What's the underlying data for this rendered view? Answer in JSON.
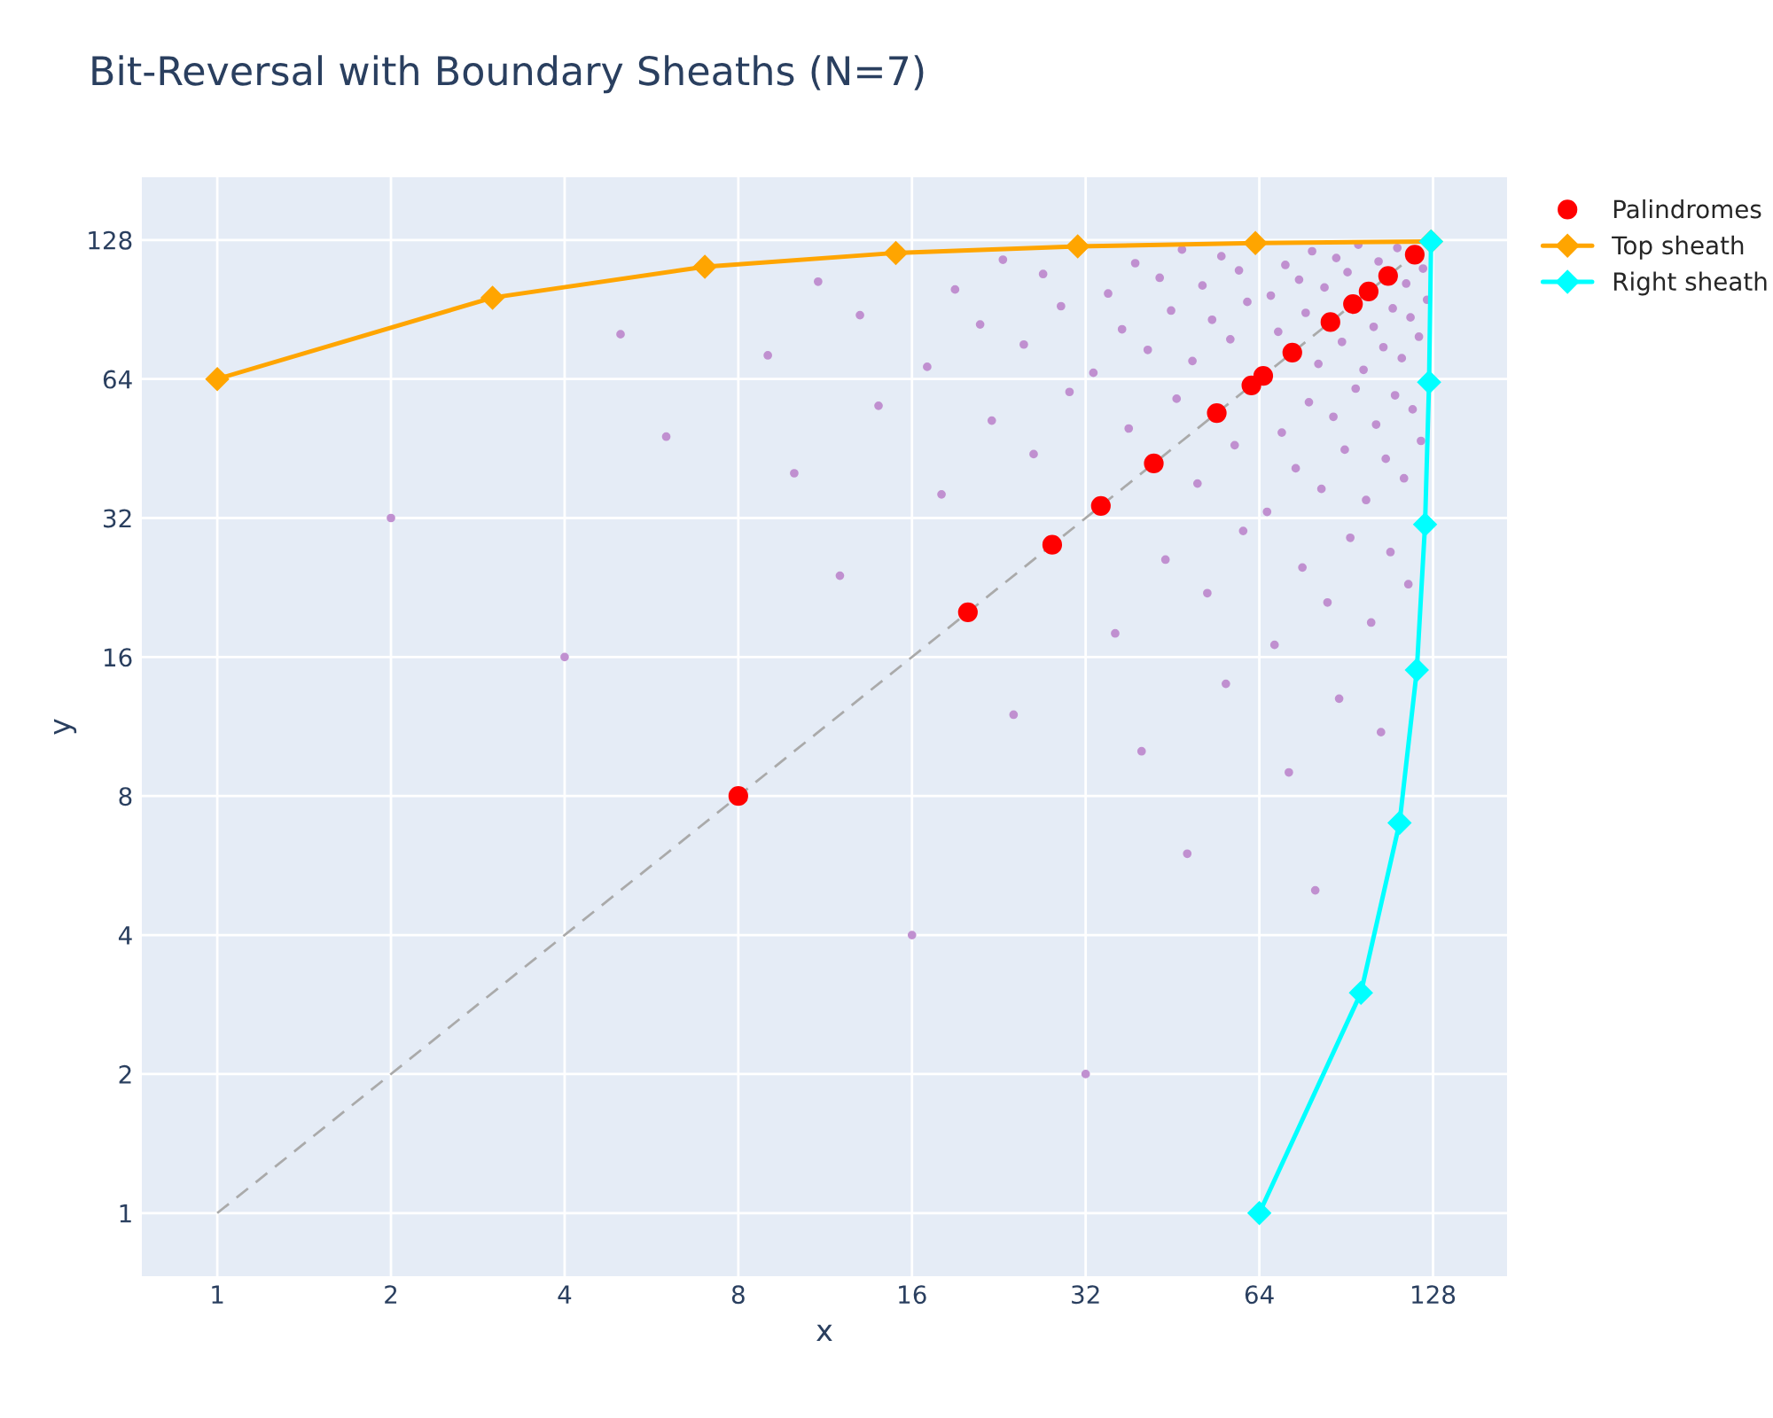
{
  "chart_data": {
    "type": "scatter",
    "title": "Bit-Reversal with Boundary Sheaths (N=7)",
    "xlabel": "x",
    "ylabel": "y",
    "log": "xy",
    "xlim": [
      0.74,
      172
    ],
    "ylim": [
      0.73,
      175
    ],
    "xticks": [
      1,
      2,
      4,
      8,
      16,
      32,
      64,
      128
    ],
    "yticks": [
      1,
      2,
      4,
      8,
      16,
      32,
      64,
      128
    ],
    "grid": true,
    "legend": "top right",
    "series": [
      {
        "type": "line",
        "color": "#aaaaaa",
        "line_style": "dashed",
        "marker": "none",
        "x": [
          1,
          128
        ],
        "values": [
          1,
          128
        ]
      },
      {
        "color": "#c090d0",
        "marker": "circle",
        "x": [
          2,
          4,
          5,
          6,
          9,
          10,
          11,
          12,
          13,
          14,
          16,
          17,
          18,
          19,
          21,
          22,
          23,
          24,
          25,
          26,
          27,
          29,
          30,
          32,
          33,
          35,
          36,
          37,
          38,
          39,
          40,
          41,
          43,
          44,
          45,
          46,
          47,
          48,
          49,
          50,
          51,
          52,
          53,
          55,
          56,
          57,
          58,
          59,
          60,
          61,
          66,
          67,
          68,
          69,
          70,
          71,
          72,
          74,
          75,
          76,
          77,
          78,
          79,
          80,
          81,
          82,
          83,
          84,
          86,
          87,
          88,
          89,
          90,
          91,
          92,
          94,
          95,
          97,
          98,
          100,
          101,
          102,
          103,
          104,
          105,
          106,
          108,
          109,
          110,
          111,
          113,
          114,
          115,
          116,
          117,
          118,
          121,
          122,
          123,
          125
        ],
        "values": [
          32,
          16,
          80,
          48,
          72,
          40,
          104,
          24,
          88,
          56,
          4,
          68,
          36,
          100,
          84,
          52,
          116,
          12,
          76,
          44,
          108,
          92,
          60,
          2,
          66,
          98,
          18,
          82,
          50,
          114,
          10,
          74,
          106,
          26,
          90,
          58,
          122,
          6,
          70,
          38,
          102,
          22,
          86,
          118,
          14,
          78,
          46,
          110,
          30,
          94,
          33,
          97,
          17,
          81,
          49,
          113,
          9,
          41,
          105,
          25,
          89,
          57,
          121,
          5,
          69,
          37,
          101,
          21,
          53,
          117,
          13,
          77,
          45,
          109,
          29,
          61,
          125,
          67,
          35,
          19,
          83,
          51,
          115,
          11,
          75,
          43,
          27,
          91,
          59,
          123,
          71,
          39,
          103,
          23,
          87,
          55,
          79,
          47,
          111,
          95
        ]
      },
      {
        "name": "Palindromes",
        "color": "#ff0000",
        "marker": "circle",
        "x": [
          8,
          20,
          28,
          34,
          42,
          54,
          62,
          65,
          73,
          85,
          93,
          99,
          107,
          119
        ],
        "values": [
          8,
          20,
          28,
          34,
          42,
          54,
          62,
          65,
          73,
          85,
          93,
          99,
          107,
          119
        ]
      },
      {
        "type": "line",
        "name": "Top sheath",
        "color": "#ffa500",
        "marker": "diamond",
        "line_style": "solid",
        "x": [
          1,
          3,
          7,
          15,
          31,
          63,
          127
        ],
        "values": [
          64,
          96,
          112,
          120,
          124,
          126,
          127
        ]
      },
      {
        "type": "line",
        "name": "Right sheath",
        "color": "#00ffff",
        "marker": "diamond",
        "line_style": "solid",
        "x": [
          64,
          96,
          112,
          120,
          124,
          126,
          127
        ],
        "values": [
          1,
          3,
          7,
          15,
          31,
          63,
          127
        ]
      }
    ]
  }
}
